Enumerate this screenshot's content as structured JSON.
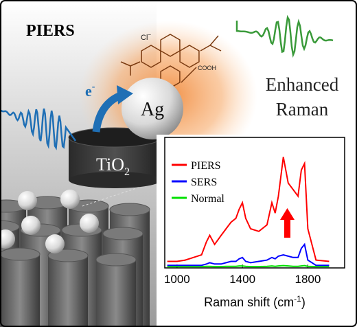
{
  "title": "PIERS",
  "labels": {
    "electron": "e",
    "electron_charge": "-",
    "silver": "Ag",
    "tio2": "TiO",
    "tio2_sub": "2",
    "enhanced": "Enhanced",
    "raman": "Raman",
    "chloride": "Cl",
    "chloride_charge": "−",
    "cooh": "COOH"
  },
  "chart_data": {
    "type": "line",
    "xlabel": [
      "Raman shift (cm",
      "-1",
      ")"
    ],
    "x": [
      940,
      1000,
      1050,
      1100,
      1150,
      1180,
      1200,
      1230,
      1270,
      1300,
      1330,
      1360,
      1380,
      1400,
      1420,
      1450,
      1500,
      1550,
      1580,
      1600,
      1620,
      1650,
      1680,
      1710,
      1740,
      1760,
      1780,
      1800,
      1850,
      1930
    ],
    "xlim": [
      925,
      2025
    ],
    "xticks": [
      1000,
      1400,
      1800
    ],
    "ylim": [
      0,
      1
    ],
    "series": [
      {
        "name": "PIERS",
        "color": "#ff0000",
        "values": [
          0.05,
          0.05,
          0.06,
          0.08,
          0.1,
          0.2,
          0.25,
          0.18,
          0.25,
          0.3,
          0.35,
          0.38,
          0.45,
          0.5,
          0.38,
          0.3,
          0.28,
          0.33,
          0.5,
          0.42,
          0.55,
          0.85,
          0.65,
          0.6,
          0.55,
          0.75,
          0.8,
          0.3,
          0.06,
          0.05
        ]
      },
      {
        "name": "SERS",
        "color": "#0000ff",
        "values": [
          0.02,
          0.02,
          0.02,
          0.02,
          0.02,
          0.03,
          0.04,
          0.03,
          0.03,
          0.04,
          0.05,
          0.05,
          0.07,
          0.08,
          0.05,
          0.04,
          0.05,
          0.06,
          0.08,
          0.07,
          0.09,
          0.1,
          0.09,
          0.08,
          0.08,
          0.15,
          0.18,
          0.06,
          0.02,
          0.02
        ]
      },
      {
        "name": "Normal",
        "color": "#00e000",
        "values": [
          0.01,
          0.01,
          0.01,
          0.01,
          0.01,
          0.012,
          0.012,
          0.01,
          0.01,
          0.012,
          0.012,
          0.012,
          0.015,
          0.015,
          0.012,
          0.01,
          0.01,
          0.012,
          0.015,
          0.012,
          0.015,
          0.018,
          0.015,
          0.012,
          0.012,
          0.015,
          0.018,
          0.012,
          0.01,
          0.01
        ]
      }
    ],
    "legend": "upper left"
  }
}
